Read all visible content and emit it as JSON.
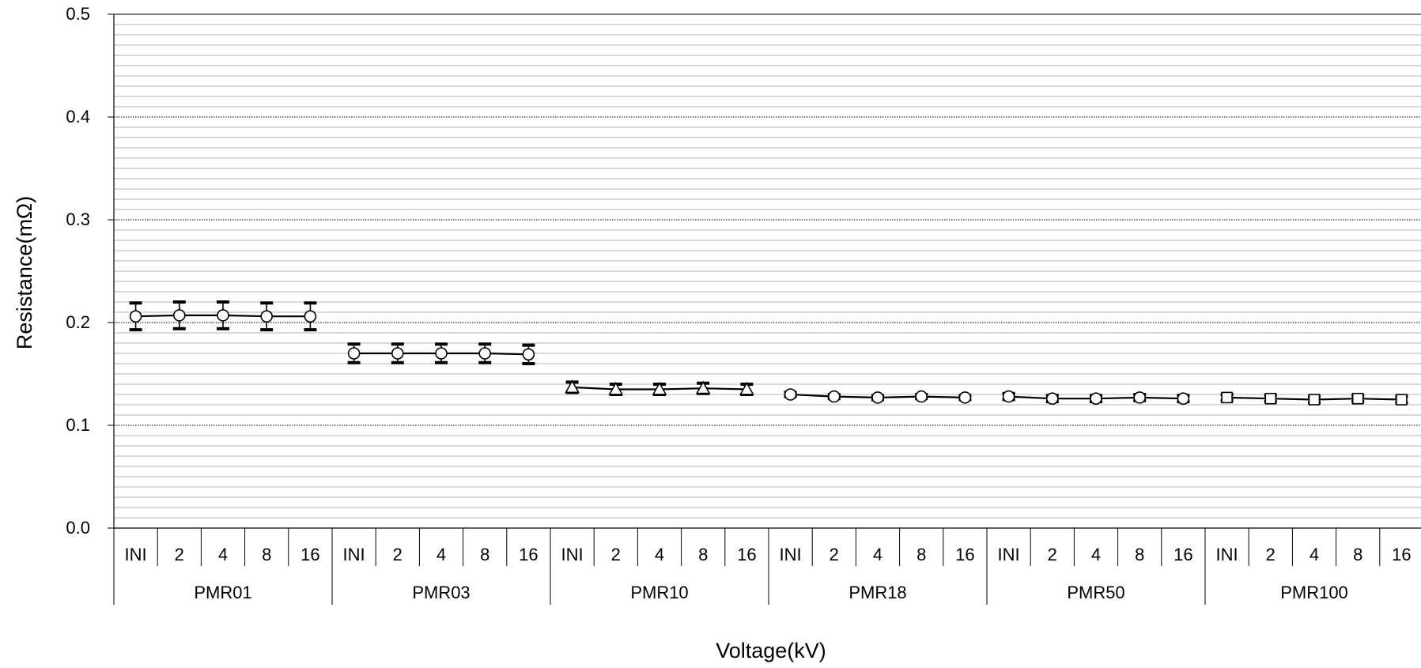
{
  "chart_data": {
    "type": "line",
    "title": "",
    "xlabel": "Voltage(kV)",
    "ylabel": "Resistance(mΩ)",
    "ylim": [
      0.0,
      0.5
    ],
    "y_ticks": [
      "0.0",
      "0.1",
      "0.2",
      "0.3",
      "0.4",
      "0.5"
    ],
    "y_major_step": 0.1,
    "y_minor_step": 0.01,
    "grid": true,
    "legend": "none",
    "line_color": "#000000",
    "marker_fill": "#ffffff",
    "categories": [
      "INI",
      "2",
      "4",
      "8",
      "16"
    ],
    "groups": [
      {
        "name": "PMR01",
        "marker": "circle",
        "values": [
          0.206,
          0.207,
          0.207,
          0.206,
          0.206
        ],
        "errors": [
          0.013,
          0.013,
          0.013,
          0.013,
          0.013
        ]
      },
      {
        "name": "PMR03",
        "marker": "circle",
        "values": [
          0.17,
          0.17,
          0.17,
          0.17,
          0.169
        ],
        "errors": [
          0.009,
          0.009,
          0.009,
          0.009,
          0.009
        ]
      },
      {
        "name": "PMR10",
        "marker": "triangle",
        "values": [
          0.137,
          0.135,
          0.135,
          0.136,
          0.135
        ],
        "errors": [
          0.005,
          0.005,
          0.005,
          0.005,
          0.005
        ]
      },
      {
        "name": "PMR18",
        "marker": "circle",
        "values": [
          0.13,
          0.128,
          0.127,
          0.128,
          0.127
        ],
        "errors": [
          0.002,
          0.002,
          0.002,
          0.002,
          0.002
        ]
      },
      {
        "name": "PMR50",
        "marker": "circle",
        "values": [
          0.128,
          0.126,
          0.126,
          0.127,
          0.126
        ],
        "errors": [
          0.003,
          0.003,
          0.003,
          0.003,
          0.003
        ]
      },
      {
        "name": "PMR100",
        "marker": "square",
        "values": [
          0.127,
          0.126,
          0.125,
          0.126,
          0.125
        ],
        "errors": [
          0.003,
          0.003,
          0.003,
          0.003,
          0.003
        ]
      }
    ]
  }
}
